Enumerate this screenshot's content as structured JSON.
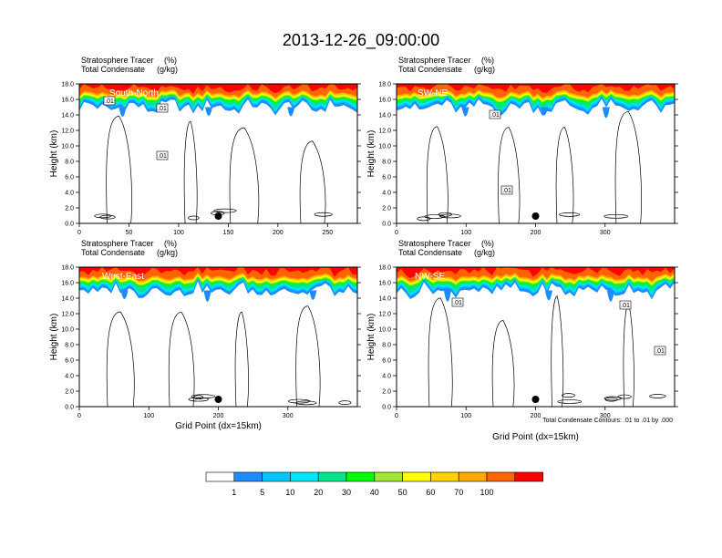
{
  "figure": {
    "title": "2013-12-26_09:00:00",
    "left_labels": [
      "Stratosphere Tracer",
      "Total Condensate"
    ],
    "right_units": [
      "(%)",
      "(g/kg)"
    ],
    "footnote": "Total Condensate Contours: .01 to .01 by .000"
  },
  "chart_data": [
    {
      "type": "heatmap",
      "panel_label": "South-North",
      "ylabel": "Height (km)",
      "xlabel": "",
      "xlim": [
        0,
        280
      ],
      "ylim": [
        0,
        18
      ],
      "xticks": [
        "0",
        "50",
        "100",
        "150",
        "200",
        "250"
      ],
      "yticks": [
        "0.0",
        "2.0",
        "4.0",
        "6.0",
        "8.0",
        "10.0",
        "12.0",
        "14.0",
        "16.0",
        "18.0"
      ],
      "contour_labels": [
        ".01",
        ".01",
        ".01"
      ],
      "marker_x": 140,
      "tropopause_km": 15
    },
    {
      "type": "heatmap",
      "panel_label": "SW-NE",
      "ylabel": "Height (km)",
      "xlabel": "",
      "xlim": [
        0,
        400
      ],
      "ylim": [
        0,
        18
      ],
      "xticks": [
        "0",
        "100",
        "200",
        "300"
      ],
      "yticks": [
        "0.0",
        "2.0",
        "4.0",
        "6.0",
        "8.0",
        "10.0",
        "12.0",
        "14.0",
        "16.0",
        "18.0"
      ],
      "contour_labels": [
        ".01",
        ".01"
      ],
      "marker_x": 200,
      "tropopause_km": 15
    },
    {
      "type": "heatmap",
      "panel_label": "West-East",
      "ylabel": "Height (km)",
      "xlabel": "Grid Point (dx=15km)",
      "xlim": [
        0,
        400
      ],
      "ylim": [
        0,
        18
      ],
      "xticks": [
        "0",
        "100",
        "200",
        "300"
      ],
      "yticks": [
        "0.0",
        "2.0",
        "4.0",
        "6.0",
        "8.0",
        "10.0",
        "12.0",
        "14.0",
        "16.0",
        "18.0"
      ],
      "contour_labels": [],
      "marker_x": 200,
      "tropopause_km": 15
    },
    {
      "type": "heatmap",
      "panel_label": "NW-SE",
      "ylabel": "Height (km)",
      "xlabel": "Grid Point (dx=15km)",
      "xlim": [
        0,
        400
      ],
      "ylim": [
        0,
        18
      ],
      "xticks": [
        "0",
        "100",
        "200",
        "300"
      ],
      "yticks": [
        "0.0",
        "2.0",
        "4.0",
        "6.0",
        "8.0",
        "10.0",
        "12.0",
        "14.0",
        "16.0",
        "18.0"
      ],
      "contour_labels": [
        ".01",
        ".01",
        ".01"
      ],
      "marker_x": 200,
      "tropopause_km": 15
    }
  ],
  "colorbar": {
    "labels": [
      "1",
      "5",
      "10",
      "20",
      "30",
      "40",
      "50",
      "60",
      "70",
      "100"
    ],
    "colors": [
      "#ffffff",
      "#1e8cff",
      "#00c8ff",
      "#00e6ff",
      "#00e68c",
      "#00ff00",
      "#a0e632",
      "#ffff00",
      "#ffd200",
      "#ffaa00",
      "#ff6400",
      "#ff0000"
    ]
  }
}
